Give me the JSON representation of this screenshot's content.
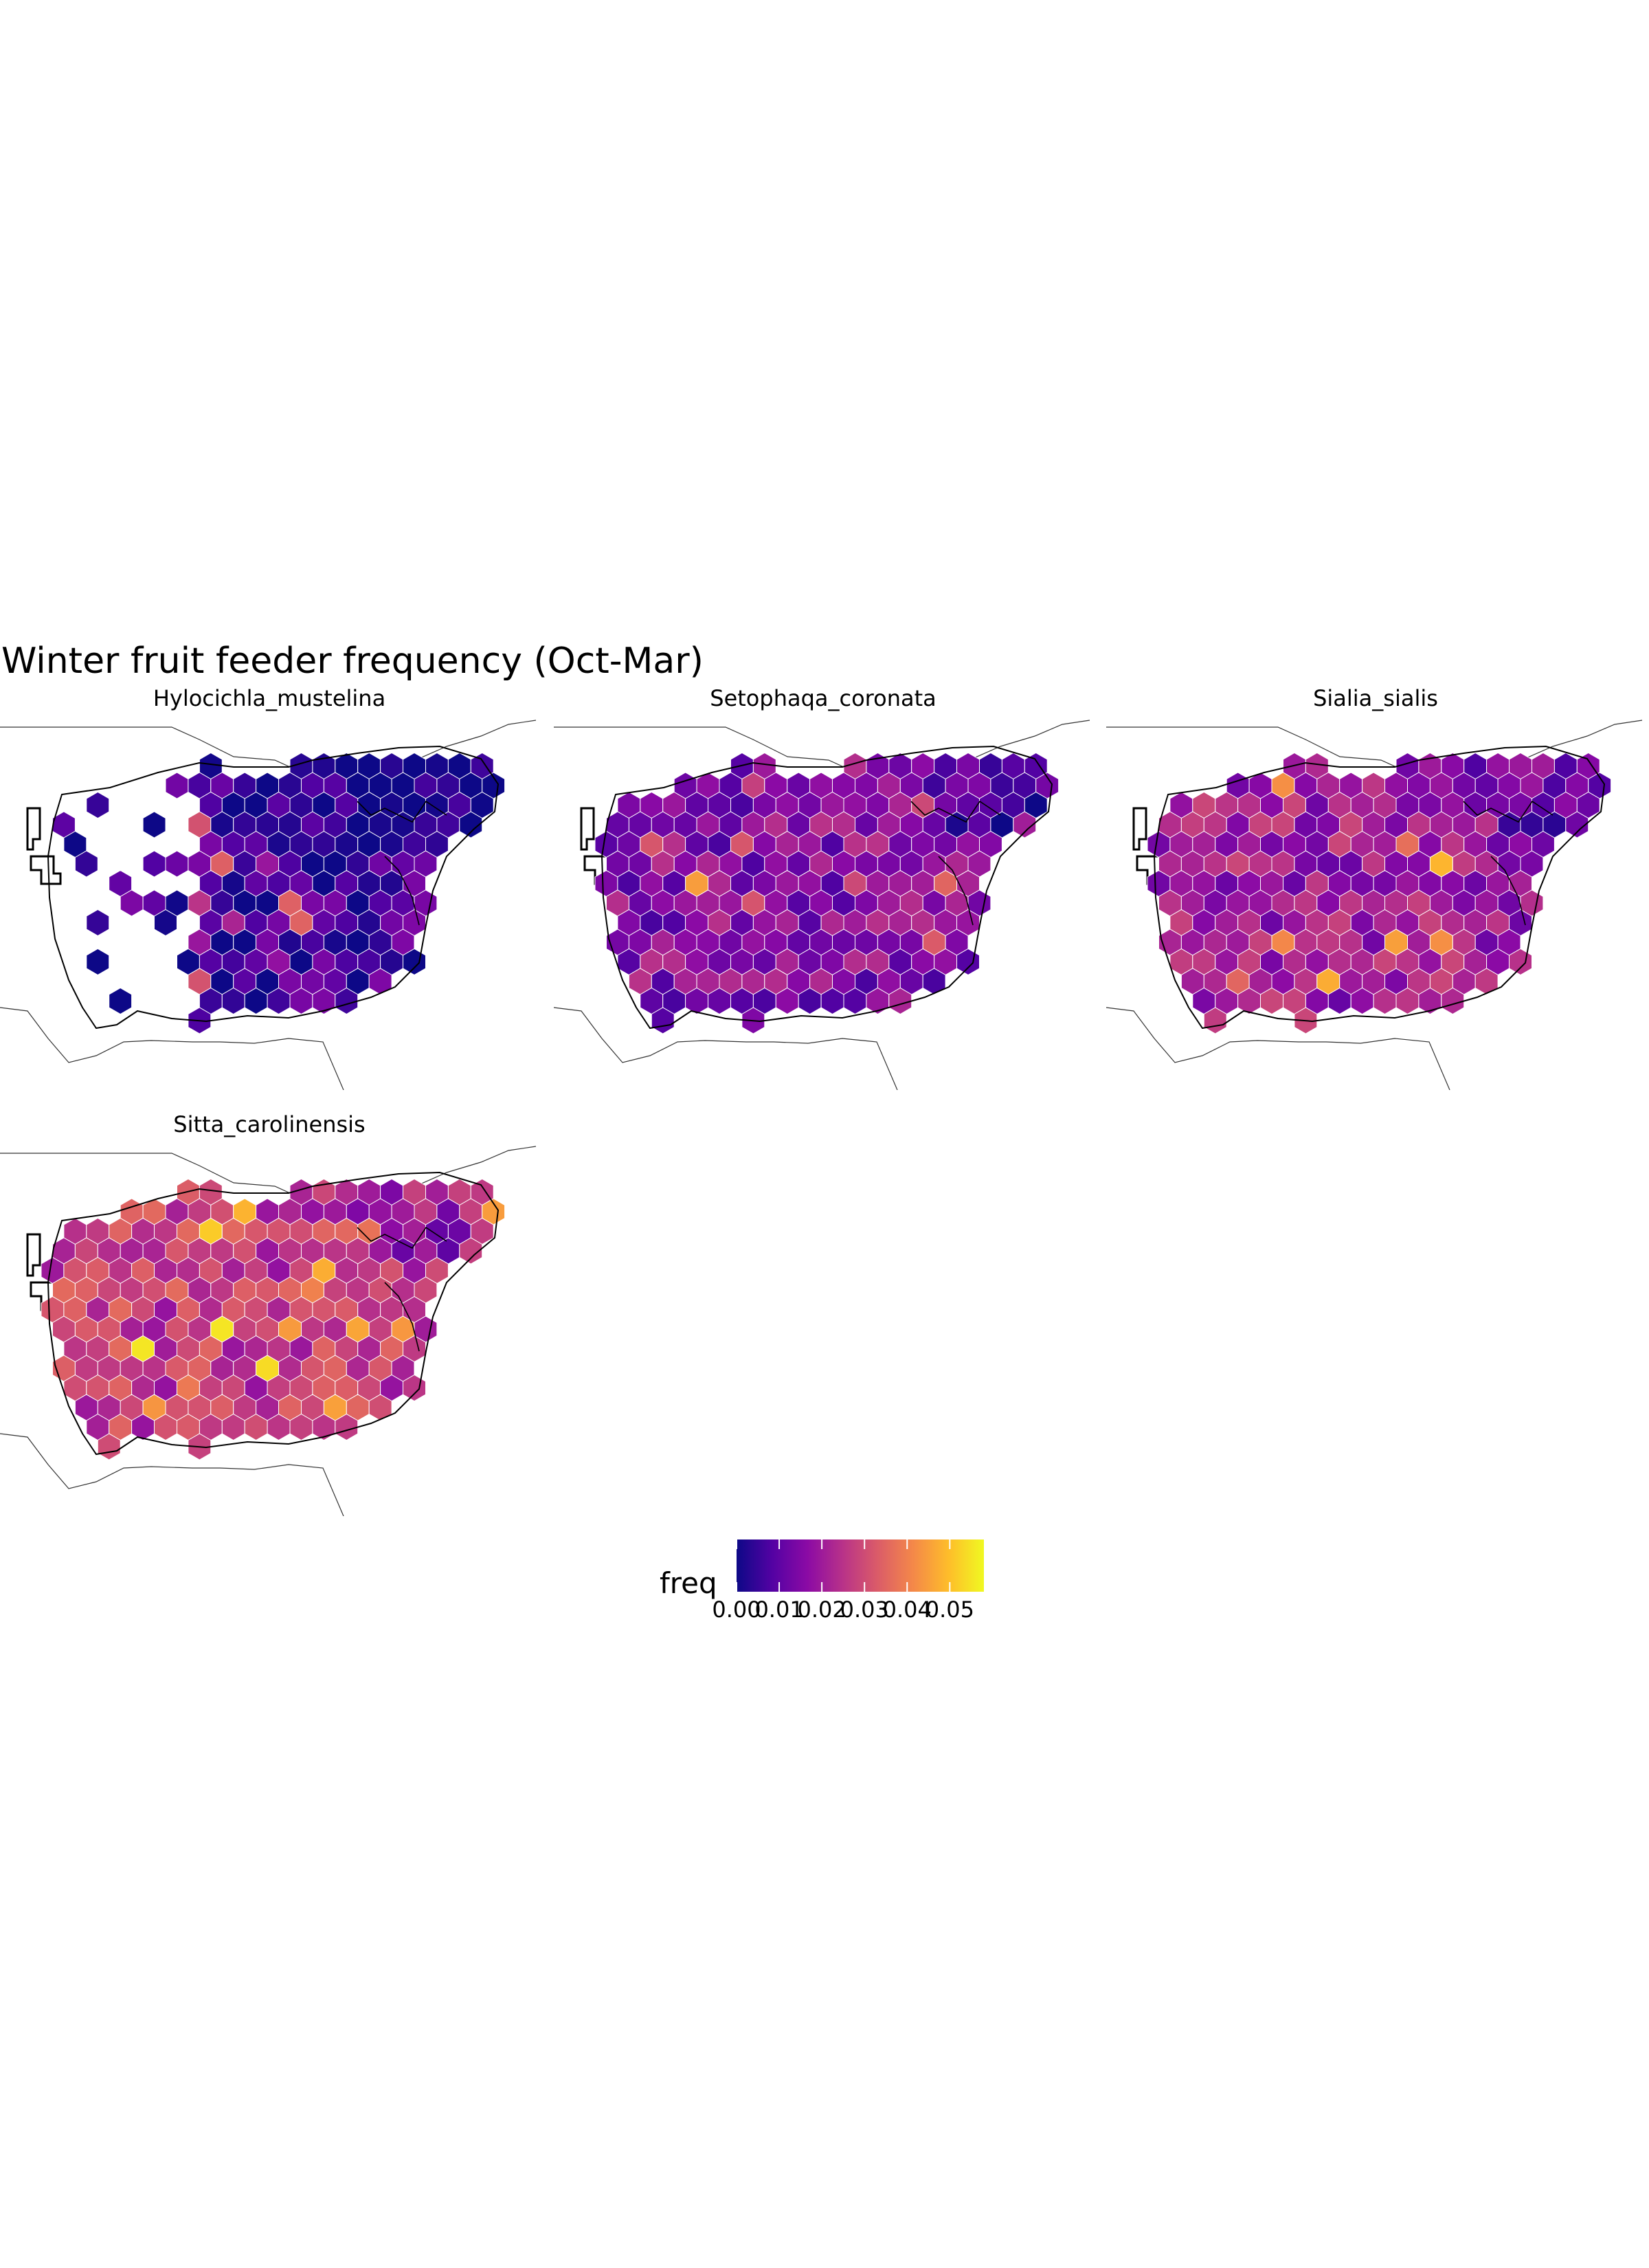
{
  "chart_data": {
    "type": "heatmap",
    "title": "Winter fruit feeder frequency (Oct-Mar)",
    "panels": [
      {
        "name": "Hylocichla_mustelina",
        "level": 0.006,
        "sparse": true
      },
      {
        "name": "Setophaqa_coronata",
        "level": 0.016,
        "sparse": false
      },
      {
        "name": "Sialia_sialis",
        "level": 0.02,
        "sparse": false
      },
      {
        "name": "Sitta_carolinensis",
        "level": 0.027,
        "sparse": false
      }
    ],
    "legend": {
      "title": "freq",
      "min": 0.0,
      "max": 0.058,
      "ticks": [
        0.0,
        0.01,
        0.02,
        0.03,
        0.04,
        0.05
      ],
      "tick_labels": [
        "0.00",
        "0.01",
        "0.02",
        "0.03",
        "0.04",
        "0.05"
      ]
    },
    "colorscale": [
      "#0d0887",
      "#5302a3",
      "#8b0aa5",
      "#b83289",
      "#db5c68",
      "#f48849",
      "#febd2a",
      "#f0f921"
    ],
    "highlight_border_color": "#e8150c"
  }
}
